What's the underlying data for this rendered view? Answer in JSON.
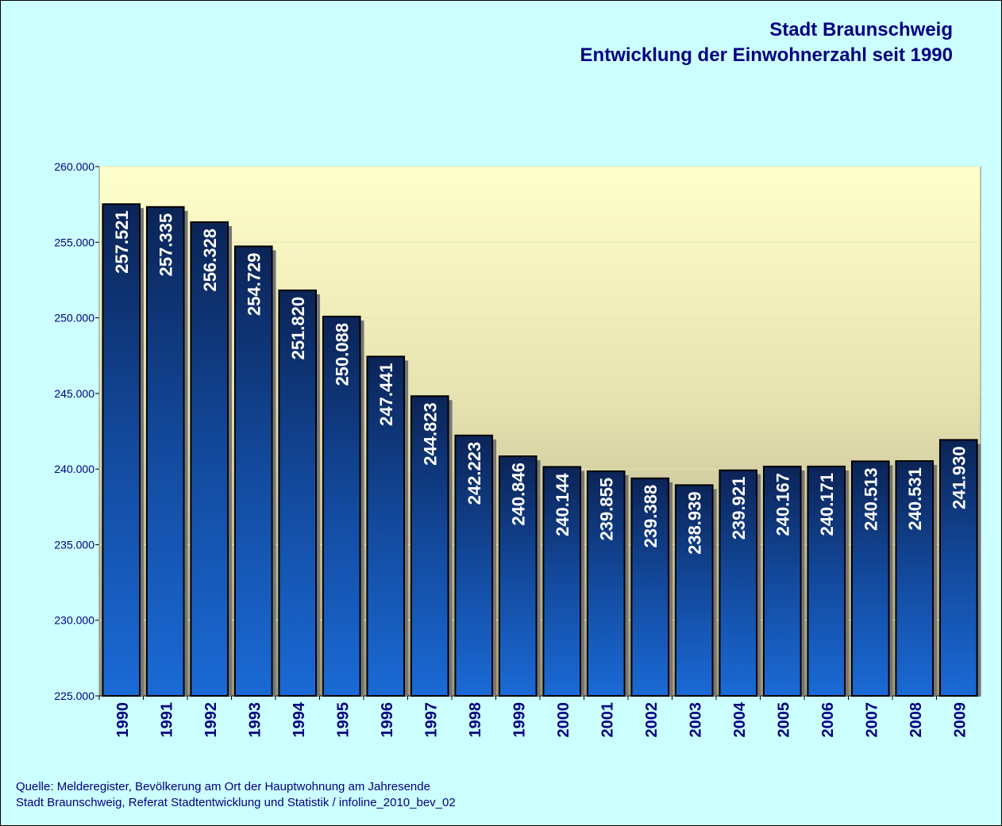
{
  "chart_data": {
    "type": "bar",
    "title": "Stadt Braunschweig",
    "subtitle": "Entwicklung der Einwohnerzahl seit 1990",
    "categories": [
      "1990",
      "1991",
      "1992",
      "1993",
      "1994",
      "1995",
      "1996",
      "1997",
      "1998",
      "1999",
      "2000",
      "2001",
      "2002",
      "2003",
      "2004",
      "2005",
      "2006",
      "2007",
      "2008",
      "2009"
    ],
    "values": [
      257521,
      257335,
      256328,
      254729,
      251820,
      250088,
      247441,
      244823,
      242223,
      240846,
      240144,
      239855,
      239388,
      238939,
      239921,
      240167,
      240171,
      240513,
      240531,
      241930
    ],
    "value_labels": [
      "257.521",
      "257.335",
      "256.328",
      "254.729",
      "251.820",
      "250.088",
      "247.441",
      "244.823",
      "242.223",
      "240.846",
      "240.144",
      "239.855",
      "239.388",
      "238.939",
      "239.921",
      "240.167",
      "240.171",
      "240.513",
      "240.531",
      "241.930"
    ],
    "color": "#0a2a6a",
    "ylim": [
      225000,
      260000
    ],
    "yticks": [
      {
        "value": 225000,
        "label": "225.000"
      },
      {
        "value": 230000,
        "label": "230.000"
      },
      {
        "value": 235000,
        "label": "235.000"
      },
      {
        "value": 240000,
        "label": "240.000"
      },
      {
        "value": 245000,
        "label": "245.000"
      },
      {
        "value": 250000,
        "label": "250.000"
      },
      {
        "value": 255000,
        "label": "255.000"
      },
      {
        "value": 260000,
        "label": "260.000"
      }
    ],
    "grid": true,
    "notes": [
      "Quelle: Melderegister, Bevölkerung am Ort der Hauptwohnung am Jahresende",
      "Stadt Braunschweig, Referat Stadtentwicklung und Statistik / infoline_2010_bev_02"
    ]
  }
}
